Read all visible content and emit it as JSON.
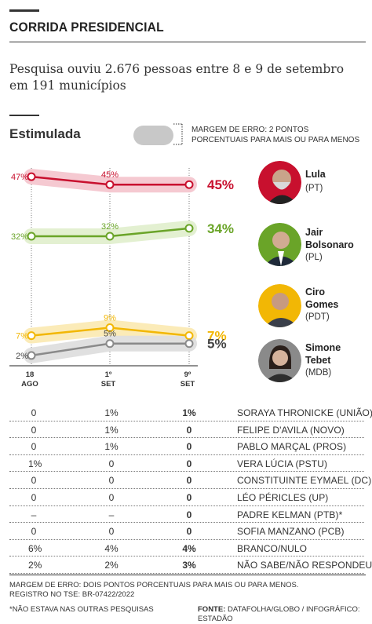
{
  "header": {
    "title": "CORRIDA PRESIDENCIAL",
    "subtitle": "Pesquisa ouviu 2.676 pessoas entre 8 e 9 de setembro em 191 municípios",
    "section": "Estimulada",
    "legend_text": "MARGEM DE ERRO: 2 PONTOS PORCENTUAIS PARA MAIS OU PARA MENOS"
  },
  "chart_data": {
    "type": "line",
    "title": "Estimulada",
    "x": [
      "18 AGO",
      "1º SET",
      "9º SET"
    ],
    "x_labels": [
      [
        "18",
        "AGO"
      ],
      [
        "1º",
        "SET"
      ],
      [
        "9º",
        "SET"
      ]
    ],
    "ylim": [
      0,
      50
    ],
    "margin_of_error": 2,
    "series": [
      {
        "name": "Lula",
        "party": "(PT)",
        "values": [
          47,
          45,
          45
        ],
        "color": "#c8102e",
        "band": "#f4c6cf",
        "labels": [
          "47%",
          "45%",
          ""
        ],
        "final": "45%"
      },
      {
        "name": "Jair Bolsonaro",
        "party": "(PL)",
        "values": [
          32,
          32,
          34
        ],
        "color": "#6aa428",
        "band": "#e2efcf",
        "labels": [
          "32%",
          "32%",
          ""
        ],
        "final": "34%"
      },
      {
        "name": "Ciro Gomes",
        "party": "(PDT)",
        "values": [
          7,
          9,
          7
        ],
        "color": "#f2b705",
        "band": "#fbeab4",
        "labels": [
          "7%",
          "9%",
          ""
        ],
        "final": "7%"
      },
      {
        "name": "Simone Tebet",
        "party": "(MDB)",
        "values": [
          2,
          5,
          5
        ],
        "color": "#8a8a8a",
        "band": "#dedede",
        "labels": [
          "2%",
          "5%",
          ""
        ],
        "final": "5%"
      }
    ]
  },
  "candidates": [
    {
      "name_line1": "Lula",
      "name_line2": "",
      "party": "(PT)"
    },
    {
      "name_line1": "Jair",
      "name_line2": "Bolsonaro",
      "party": "(PL)"
    },
    {
      "name_line1": "Ciro",
      "name_line2": "Gomes",
      "party": "(PDT)"
    },
    {
      "name_line1": "Simone",
      "name_line2": "Tebet",
      "party": "(MDB)"
    }
  ],
  "table": {
    "rows": [
      {
        "aug18": "0",
        "sep1": "1%",
        "sep9": "1%",
        "name": "SORAYA THRONICKE (UNIÃO)"
      },
      {
        "aug18": "0",
        "sep1": "1%",
        "sep9": "0",
        "name": "FELIPE D'AVILA (NOVO)"
      },
      {
        "aug18": "0",
        "sep1": "1%",
        "sep9": "0",
        "name": "PABLO MARÇAL (PROS)"
      },
      {
        "aug18": "1%",
        "sep1": "0",
        "sep9": "0",
        "name": "VERA LÚCIA (PSTU)"
      },
      {
        "aug18": "0",
        "sep1": "0",
        "sep9": "0",
        "name": "CONSTITUINTE EYMAEL (DC)"
      },
      {
        "aug18": "0",
        "sep1": "0",
        "sep9": "0",
        "name": "LÉO PÉRICLES (UP)"
      },
      {
        "aug18": "–",
        "sep1": "–",
        "sep9": "0",
        "name": "PADRE KELMAN (PTB)*"
      },
      {
        "aug18": "0",
        "sep1": "0",
        "sep9": "0",
        "name": "SOFIA MANZANO (PCB)"
      },
      {
        "aug18": "6%",
        "sep1": "4%",
        "sep9": "4%",
        "name": "BRANCO/NULO"
      },
      {
        "aug18": "2%",
        "sep1": "2%",
        "sep9": "3%",
        "name": "NÃO SABE/NÃO RESPONDEU"
      }
    ]
  },
  "footer": {
    "note": "MARGEM DE ERRO: DOIS PONTOS PORCENTUAIS PARA MAIS OU PARA MENOS. REGISTRO NO TSE: BR-07422/2022",
    "asterisk": "*NÃO ESTAVA NAS OUTRAS PESQUISAS",
    "source_label": "FONTE:",
    "source": "DATAFOLHA/GLOBO / INFOGRÁFICO: ESTADÃO"
  }
}
